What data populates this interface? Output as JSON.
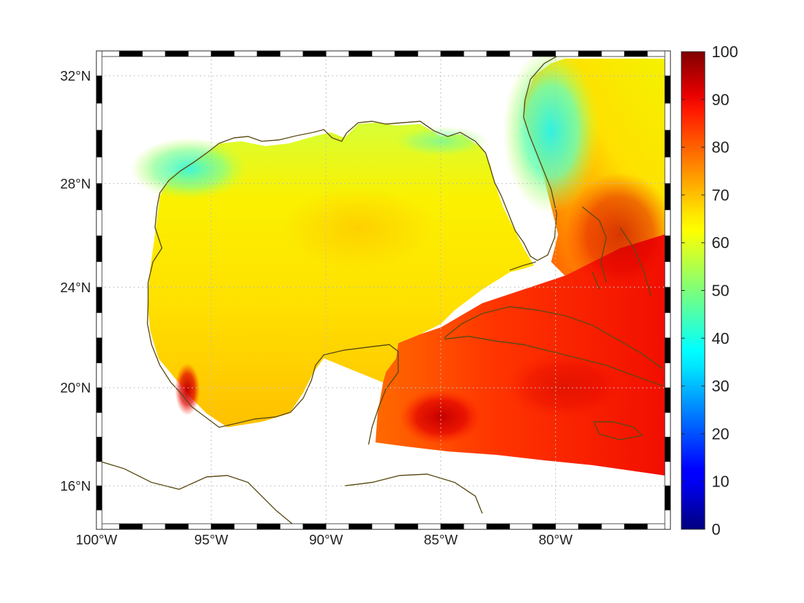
{
  "map": {
    "projection": "mercator",
    "lon_range": [
      -100,
      -75
    ],
    "lat_range": [
      14.2,
      32.9
    ],
    "frame_style": "alternating black/white border",
    "grid": true,
    "grid_style": "dotted",
    "coastline_color": "#5a4a14",
    "no_data_color": "#ffffff",
    "field_palette": "jet",
    "field_description": "gridded scalar field over the Gulf of Mexico, Caribbean and western Atlantic; values ~55-70 in the Gulf, 35-50 along the northern Gulf and Florida Atlantic coasts, 85-100 in the Caribbean and Bahamas"
  },
  "axes": {
    "x_ticks": [
      {
        "value": -100,
        "label": "100°W"
      },
      {
        "value": -95,
        "label": "95°W"
      },
      {
        "value": -90,
        "label": "90°W"
      },
      {
        "value": -85,
        "label": "85°W"
      },
      {
        "value": -80,
        "label": "80°W"
      }
    ],
    "y_ticks": [
      {
        "value": 32,
        "label": "32°N"
      },
      {
        "value": 28,
        "label": "28°N"
      },
      {
        "value": 24,
        "label": "24°N"
      },
      {
        "value": 20,
        "label": "20°N"
      },
      {
        "value": 16,
        "label": "16°N"
      }
    ]
  },
  "colorbar": {
    "min": 0,
    "max": 100,
    "palette": "jet",
    "ticks": [
      {
        "value": 100,
        "label": "100"
      },
      {
        "value": 90,
        "label": "90"
      },
      {
        "value": 80,
        "label": "80"
      },
      {
        "value": 70,
        "label": "70"
      },
      {
        "value": 60,
        "label": "60"
      },
      {
        "value": 50,
        "label": "50"
      },
      {
        "value": 40,
        "label": "40"
      },
      {
        "value": 30,
        "label": "30"
      },
      {
        "value": 20,
        "label": "20"
      },
      {
        "value": 10,
        "label": "10"
      },
      {
        "value": 0,
        "label": "0"
      }
    ]
  }
}
